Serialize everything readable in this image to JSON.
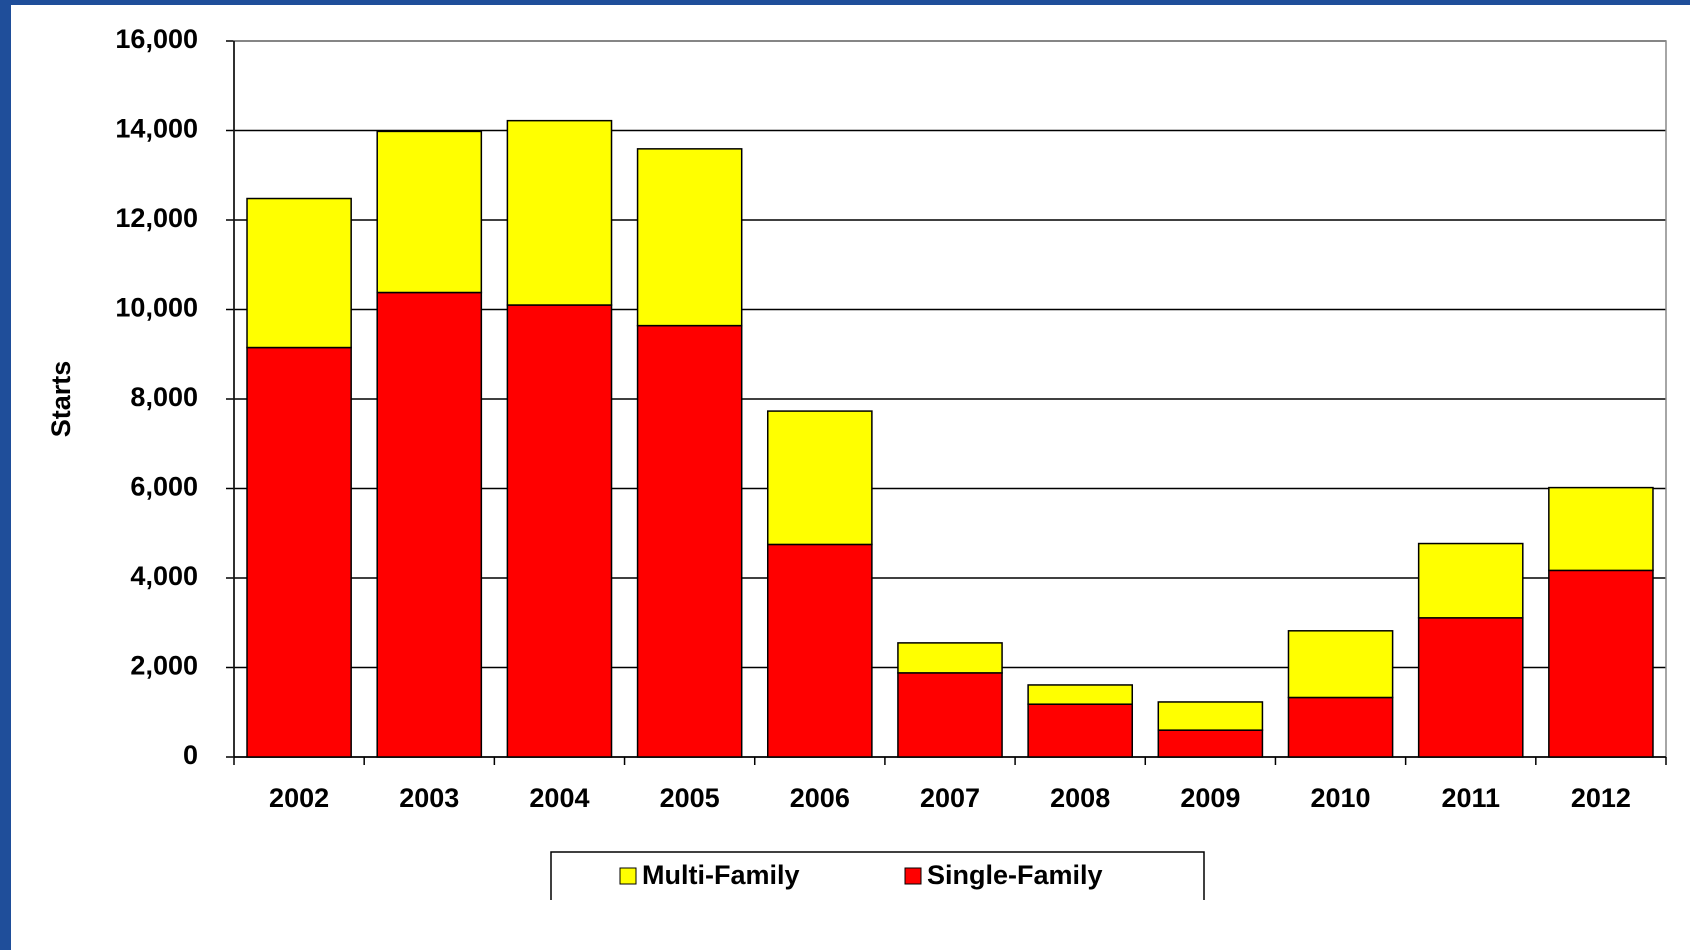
{
  "chart_data": {
    "type": "stacked_bar",
    "y_label": "Starts",
    "categories": [
      "2002",
      "2003",
      "2004",
      "2005",
      "2006",
      "2007",
      "2008",
      "2009",
      "2010",
      "2011",
      "2012"
    ],
    "series": [
      {
        "name": "Multi-Family",
        "color": "#ffff00",
        "values": [
          3330,
          3600,
          4120,
          3950,
          2980,
          670,
          430,
          630,
          1490,
          1660,
          1850
        ]
      },
      {
        "name": "Single-Family",
        "color": "#ff0000",
        "values": [
          9150,
          10380,
          10100,
          9640,
          4750,
          1880,
          1180,
          600,
          1330,
          3110,
          4170
        ]
      }
    ],
    "ylim": [
      0,
      16000
    ],
    "yticks": [
      0,
      {
        "value": 2000,
        "label": "2,000"
      },
      {
        "value": 4000,
        "label": "4,000"
      },
      {
        "value": 6000,
        "label": "6,000"
      },
      {
        "value": 8000,
        "label": "8,000"
      },
      {
        "value": 10000,
        "label": "10,000"
      },
      {
        "value": 12000,
        "label": "12,000"
      },
      {
        "value": 14000,
        "label": "14,000"
      },
      {
        "value": 16000,
        "label": "16,000"
      }
    ],
    "grid": true,
    "legend": "bottom"
  }
}
